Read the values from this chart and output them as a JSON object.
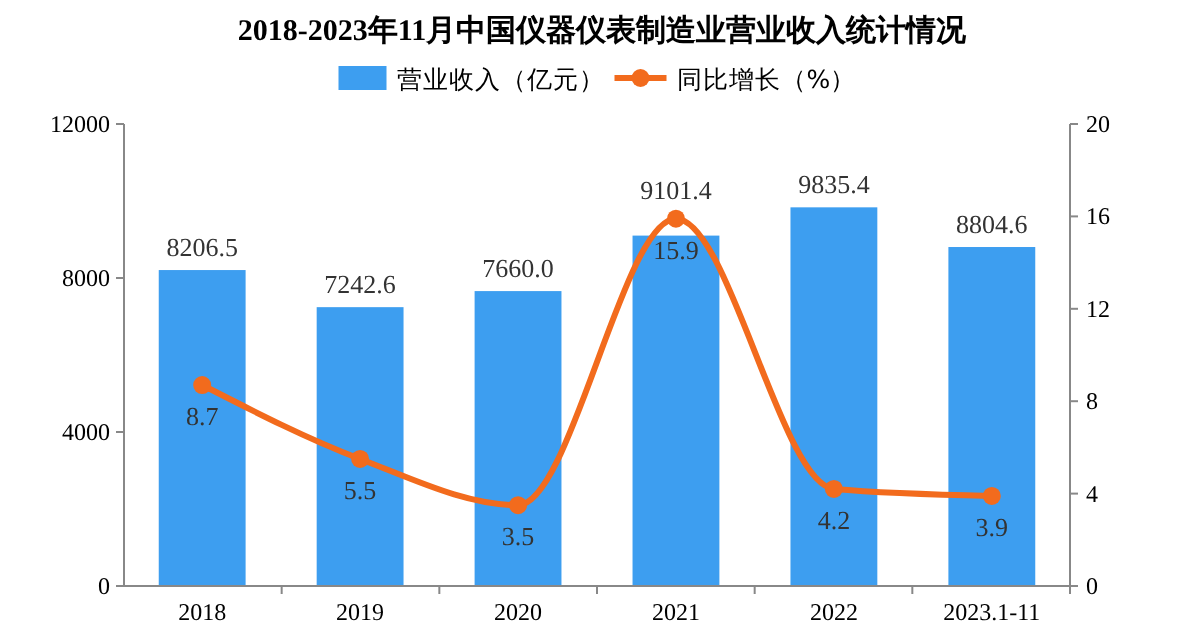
{
  "chart_data": {
    "type": "bar",
    "title": "2018-2023年11月中国仪器仪表制造业营业收入统计情况",
    "categories": [
      "2018",
      "2019",
      "2020",
      "2021",
      "2022",
      "2023.1-11"
    ],
    "series": [
      {
        "name": "营业收入（亿元）",
        "color": "#3d9ef0",
        "values": [
          8206.5,
          7242.6,
          7660.0,
          9101.4,
          9835.4,
          8804.6
        ],
        "value_labels": [
          "8206.5",
          "7242.6",
          "7660.0",
          "9101.4",
          "9835.4",
          "8804.6"
        ]
      },
      {
        "name": "同比增长（%）",
        "type": "line",
        "axis": "y2",
        "color": "#f26b1d",
        "values": [
          8.7,
          5.5,
          3.5,
          15.9,
          4.2,
          3.9
        ],
        "value_labels": [
          "8.7",
          "5.5",
          "3.5",
          "15.9",
          "4.2",
          "3.9"
        ]
      }
    ],
    "ylim": [
      0,
      12000
    ],
    "yticks": [
      0,
      4000,
      8000,
      12000
    ],
    "y2lim": [
      0,
      20
    ],
    "y2ticks": [
      0,
      4,
      8,
      12,
      16,
      20
    ],
    "legend": "top",
    "marker": "circle",
    "line_style": "solid",
    "grid": false
  }
}
